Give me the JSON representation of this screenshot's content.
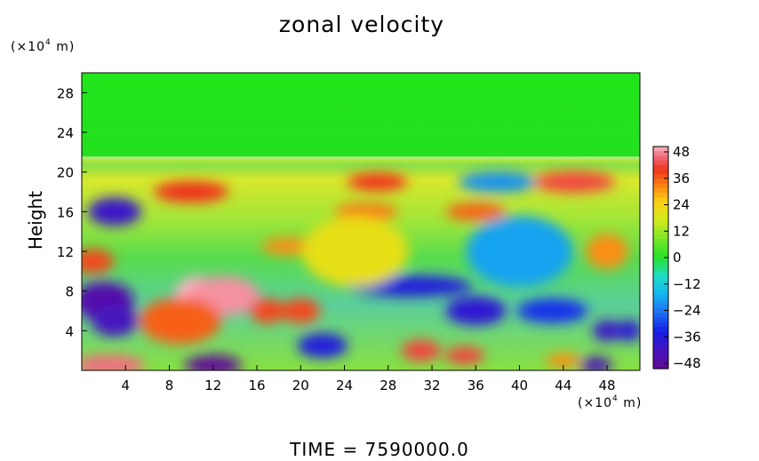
{
  "chart_data": {
    "type": "heatmap",
    "title": "zonal velocity",
    "ylabel": "Height",
    "y_unit_prefix": "(×10",
    "y_unit_exp": "4",
    "y_unit_suffix": " m)",
    "x_unit_prefix": "(×10",
    "x_unit_exp": "4",
    "x_unit_suffix": " m)",
    "xlim": [
      0,
      51
    ],
    "ylim": [
      0,
      30
    ],
    "x_ticks": [
      "4",
      "8",
      "12",
      "16",
      "20",
      "24",
      "28",
      "32",
      "36",
      "40",
      "44",
      "48"
    ],
    "y_ticks": [
      "4",
      "8",
      "12",
      "16",
      "20",
      "24",
      "28"
    ],
    "colorbar": {
      "min": -48,
      "max": 48,
      "ticks": [
        "48",
        "36",
        "24",
        "12",
        "0",
        "−12",
        "−24",
        "−36",
        "−48"
      ]
    },
    "regions": [
      {
        "x": 2,
        "y": 7,
        "value": -44
      },
      {
        "x": 3,
        "y": 5,
        "value": -40
      },
      {
        "x": 10.5,
        "y": 7,
        "value": 48
      },
      {
        "x": 13,
        "y": 7.5,
        "value": 46
      },
      {
        "x": 9,
        "y": 5,
        "value": 34
      },
      {
        "x": 12,
        "y": 0.5,
        "value": -48
      },
      {
        "x": 2.5,
        "y": 0.5,
        "value": 44
      },
      {
        "x": 3,
        "y": 16,
        "value": -38
      },
      {
        "x": 10,
        "y": 18,
        "value": 38
      },
      {
        "x": 17,
        "y": 6,
        "value": 36
      },
      {
        "x": 20,
        "y": 6,
        "value": 36
      },
      {
        "x": 27,
        "y": 19,
        "value": 38
      },
      {
        "x": 45,
        "y": 19,
        "value": 40
      },
      {
        "x": 38,
        "y": 19,
        "value": -20
      },
      {
        "x": 36,
        "y": 16,
        "value": 34
      },
      {
        "x": 26,
        "y": 16,
        "value": 32
      },
      {
        "x": 30,
        "y": 8.5,
        "value": -34
      },
      {
        "x": 36,
        "y": 6,
        "value": -36
      },
      {
        "x": 43,
        "y": 6,
        "value": -30
      },
      {
        "x": 48,
        "y": 12,
        "value": 30
      },
      {
        "x": 31,
        "y": 2,
        "value": 40
      },
      {
        "x": 35,
        "y": 1.5,
        "value": 40
      },
      {
        "x": 22,
        "y": 2.5,
        "value": -34
      },
      {
        "x": 1,
        "y": 11,
        "value": 36
      },
      {
        "x": 19,
        "y": 12.5,
        "value": 30
      },
      {
        "x": 48,
        "y": 4,
        "value": -38
      },
      {
        "x": 50,
        "y": 4,
        "value": -36
      },
      {
        "x": 44,
        "y": 1,
        "value": 30
      },
      {
        "x": 47,
        "y": 0.5,
        "value": -42
      },
      {
        "x": 25,
        "y": 12,
        "value": 20
      },
      {
        "x": 40,
        "y": 12,
        "value": -18
      }
    ]
  }
}
